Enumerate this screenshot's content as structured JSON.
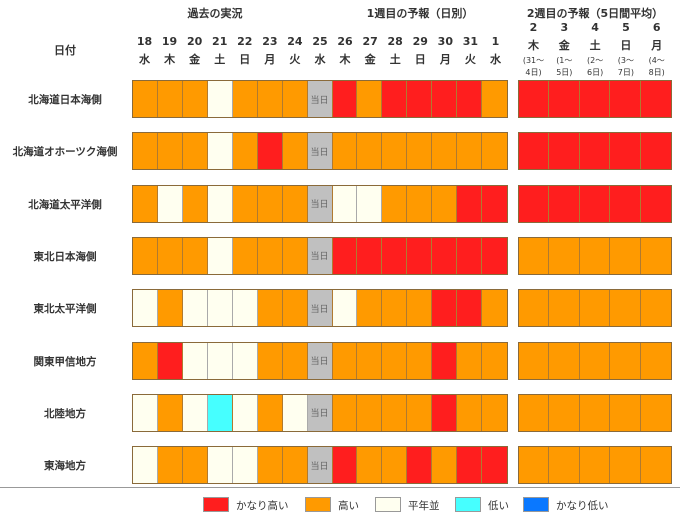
{
  "chart_data": {
    "type": "heatmap",
    "headers": {
      "past": "過去の実況",
      "week1": "1週目の予報（日別）",
      "week2": "2週目の予報（5日間平均）",
      "date_label": "日付"
    },
    "days": [
      {
        "d": "18",
        "w": "水"
      },
      {
        "d": "19",
        "w": "木"
      },
      {
        "d": "20",
        "w": "金"
      },
      {
        "d": "21",
        "w": "土"
      },
      {
        "d": "22",
        "w": "日"
      },
      {
        "d": "23",
        "w": "月"
      },
      {
        "d": "24",
        "w": "火"
      },
      {
        "d": "25",
        "w": "水"
      },
      {
        "d": "26",
        "w": "木"
      },
      {
        "d": "27",
        "w": "金"
      },
      {
        "d": "28",
        "w": "土"
      },
      {
        "d": "29",
        "w": "日"
      },
      {
        "d": "30",
        "w": "月"
      },
      {
        "d": "31",
        "w": "火"
      },
      {
        "d": "1",
        "w": "水"
      }
    ],
    "week2_days": [
      {
        "d": "2",
        "w": "木",
        "r1": "(31～",
        "r2": "4日)"
      },
      {
        "d": "3",
        "w": "金",
        "r1": "(1～",
        "r2": "5日)"
      },
      {
        "d": "4",
        "w": "土",
        "r1": "(2～",
        "r2": "6日)"
      },
      {
        "d": "5",
        "w": "日",
        "r1": "(3～",
        "r2": "7日)"
      },
      {
        "d": "6",
        "w": "月",
        "r1": "(4～",
        "r2": "8日)"
      }
    ],
    "today_label": "当日",
    "rows": [
      {
        "region": "北海道日本海側",
        "daily": [
          "A",
          "A",
          "A",
          "N",
          "A",
          "A",
          "A",
          "T",
          "H",
          "A",
          "H",
          "H",
          "H",
          "H",
          "A"
        ],
        "week2": [
          "H",
          "H",
          "H",
          "H",
          "H"
        ]
      },
      {
        "region": "北海道オホーツク海側",
        "daily": [
          "A",
          "A",
          "A",
          "N",
          "A",
          "H",
          "A",
          "T",
          "A",
          "A",
          "A",
          "A",
          "A",
          "A",
          "A"
        ],
        "week2": [
          "H",
          "H",
          "H",
          "H",
          "H"
        ]
      },
      {
        "region": "北海道太平洋側",
        "daily": [
          "A",
          "N",
          "A",
          "N",
          "A",
          "A",
          "A",
          "T",
          "N",
          "N",
          "A",
          "A",
          "A",
          "H",
          "H"
        ],
        "week2": [
          "H",
          "H",
          "H",
          "H",
          "H"
        ]
      },
      {
        "region": "東北日本海側",
        "daily": [
          "A",
          "A",
          "A",
          "N",
          "A",
          "A",
          "A",
          "T",
          "H",
          "H",
          "H",
          "H",
          "H",
          "H",
          "H"
        ],
        "week2": [
          "A",
          "A",
          "A",
          "A",
          "A"
        ]
      },
      {
        "region": "東北太平洋側",
        "daily": [
          "N",
          "A",
          "N",
          "N",
          "N",
          "A",
          "A",
          "T",
          "N",
          "A",
          "A",
          "A",
          "H",
          "H",
          "A"
        ],
        "week2": [
          "A",
          "A",
          "A",
          "A",
          "A"
        ]
      },
      {
        "region": "関東甲信地方",
        "daily": [
          "A",
          "H",
          "N",
          "N",
          "N",
          "A",
          "A",
          "T",
          "A",
          "A",
          "A",
          "A",
          "H",
          "A",
          "A"
        ],
        "week2": [
          "A",
          "A",
          "A",
          "A",
          "A"
        ]
      },
      {
        "region": "北陸地方",
        "daily": [
          "N",
          "A",
          "N",
          "L",
          "N",
          "A",
          "N",
          "T",
          "A",
          "A",
          "A",
          "A",
          "H",
          "A",
          "A"
        ],
        "week2": [
          "A",
          "A",
          "A",
          "A",
          "A"
        ]
      },
      {
        "region": "東海地方",
        "daily": [
          "N",
          "A",
          "A",
          "N",
          "N",
          "A",
          "A",
          "T",
          "H",
          "A",
          "A",
          "H",
          "A",
          "H",
          "H"
        ],
        "week2": [
          "A",
          "A",
          "A",
          "A",
          "A"
        ]
      }
    ],
    "legend": [
      {
        "code": "H",
        "label": "かなり高い",
        "color": "#ff1e1e"
      },
      {
        "code": "A",
        "label": "高い",
        "color": "#ff9a00"
      },
      {
        "code": "N",
        "label": "平年並",
        "color": "#fffff0"
      },
      {
        "code": "L",
        "label": "低い",
        "color": "#46ffff"
      },
      {
        "code": "VL",
        "label": "かなり低い",
        "color": "#0a78ff"
      }
    ],
    "today_color": "#c0c0c0"
  }
}
